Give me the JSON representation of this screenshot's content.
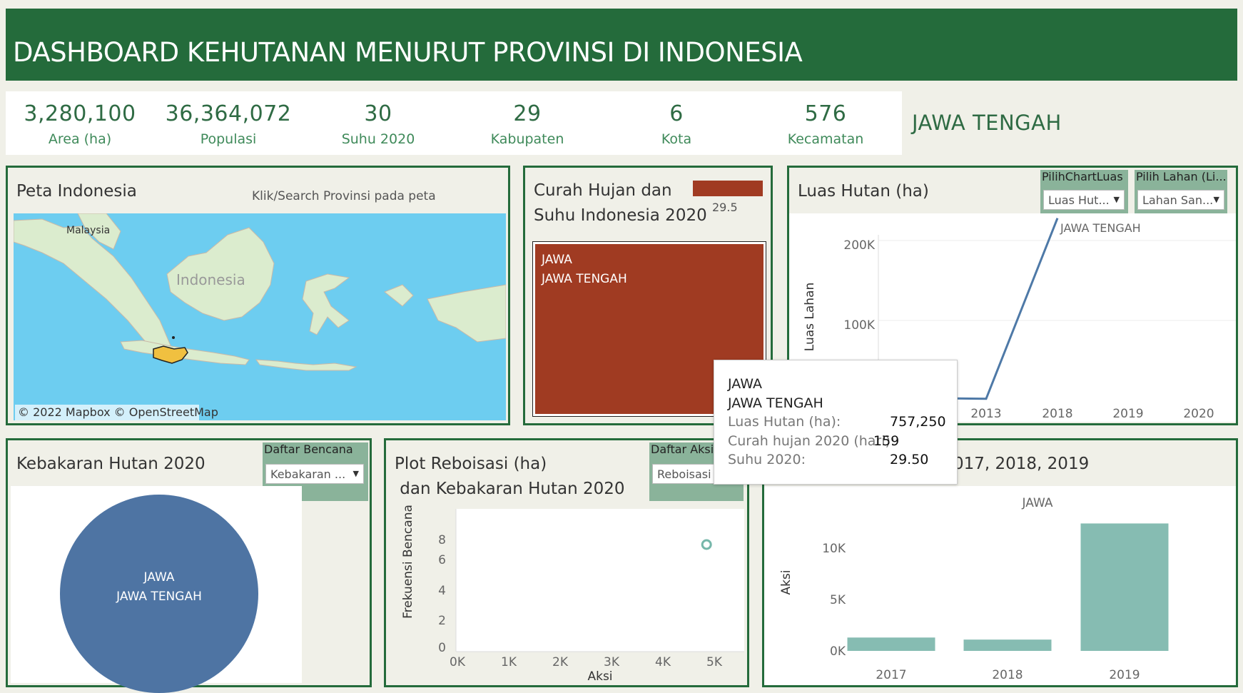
{
  "header": {
    "title": "DASHBOARD KEHUTANAN MENURUT PROVINSI DI INDONESIA"
  },
  "kpis": [
    {
      "value": "3,280,100",
      "label": "Area (ha)"
    },
    {
      "value": "36,364,072",
      "label": "Populasi"
    },
    {
      "value": "30",
      "label": "Suhu 2020"
    },
    {
      "value": "29",
      "label": "Kabupaten"
    },
    {
      "value": "6",
      "label": "Kota"
    },
    {
      "value": "576",
      "label": "Kecamatan"
    }
  ],
  "selected_region": "JAWA TENGAH",
  "map_panel": {
    "title": "Peta Indonesia",
    "hint": "Klik/Search Provinsi pada peta",
    "label_malaysia": "Malaysia",
    "label_indonesia": "Indonesia",
    "attribution": "© 2022 Mapbox  © OpenStreetMap",
    "colors": {
      "sea": "#6dcdf0",
      "land": "#dbecce",
      "highlight": "#f0c040"
    }
  },
  "rain_panel": {
    "title_line1": "Curah Hujan dan",
    "title_line2": "Suhu Indonesia 2020",
    "legend_value": "29.5",
    "block_label_line1": "JAWA",
    "block_label_line2": "JAWA TENGAH",
    "colors": {
      "block": "#a03b22",
      "legend": "#a03b22"
    }
  },
  "forest_panel": {
    "title": "Luas Hutan (ha)",
    "dropdown1": {
      "label": "PilihChartLuas",
      "value": "Luas Hut..."
    },
    "dropdown2": {
      "label": "Pilih Lahan (Li...",
      "value": "Lahan San..."
    },
    "series_label": "JAWA TENGAH",
    "color": "#4e79a7"
  },
  "fire_panel": {
    "title": "Kebakaran Hutan 2020",
    "dropdown": {
      "label": "Daftar Bencana",
      "value": "Kebakaran ..."
    },
    "circle_label_line1": "JAWA",
    "circle_label_line2": "JAWA TENGAH",
    "color": "#4e74a3"
  },
  "scatter_panel": {
    "title_line1": "Plot Reboisasi (ha)",
    "title_line2": " dan Kebakaran Hutan 2020",
    "dropdown": {
      "label": "Daftar Aksi",
      "value": "Reboisasi ..."
    },
    "color": "#76b7aa"
  },
  "bar_panel": {
    "title_visible": "017, 2018, 2019",
    "series_label": "JAWA",
    "color": "#86bcb2"
  },
  "tooltip": {
    "line1": "JAWA",
    "line2": "JAWA TENGAH",
    "rows": [
      {
        "key": "Luas Hutan (ha):",
        "value": "757,250"
      },
      {
        "key": "Curah hujan 2020 (hari):",
        "value": "159"
      },
      {
        "key": "Suhu 2020:",
        "value": "29.50"
      }
    ]
  },
  "chart_data": [
    {
      "type": "line",
      "title": "Luas Hutan (ha)",
      "ylabel": "Luas Lahan",
      "x": [
        "2013",
        "2018",
        "2019",
        "2020"
      ],
      "y_ticks": [
        "100K",
        "200K"
      ],
      "ylim": [
        0,
        230000
      ],
      "series": [
        {
          "name": "JAWA TENGAH",
          "points": [
            [
              2012,
              3000
            ],
            [
              2013,
              2000
            ],
            [
              2018,
              228000
            ]
          ]
        }
      ],
      "grid": true
    },
    {
      "type": "scatter",
      "xlabel": "Aksi",
      "ylabel": "Frekuensi Bencana",
      "x_ticks": [
        "0K",
        "1K",
        "2K",
        "3K",
        "4K",
        "5K"
      ],
      "y_ticks": [
        "0",
        "2",
        "4",
        "6",
        "8"
      ],
      "xlim": [
        0,
        5000
      ],
      "ylim": [
        0,
        8
      ],
      "points": [
        [
          4850,
          7.5
        ]
      ]
    },
    {
      "type": "bar",
      "ylabel": "Aksi",
      "categories": [
        "2017",
        "2018",
        "2019"
      ],
      "values": [
        1300,
        1100,
        12400
      ],
      "y_ticks": [
        "0K",
        "5K",
        "10K"
      ],
      "ylim": [
        0,
        13500
      ],
      "grid": false
    }
  ]
}
